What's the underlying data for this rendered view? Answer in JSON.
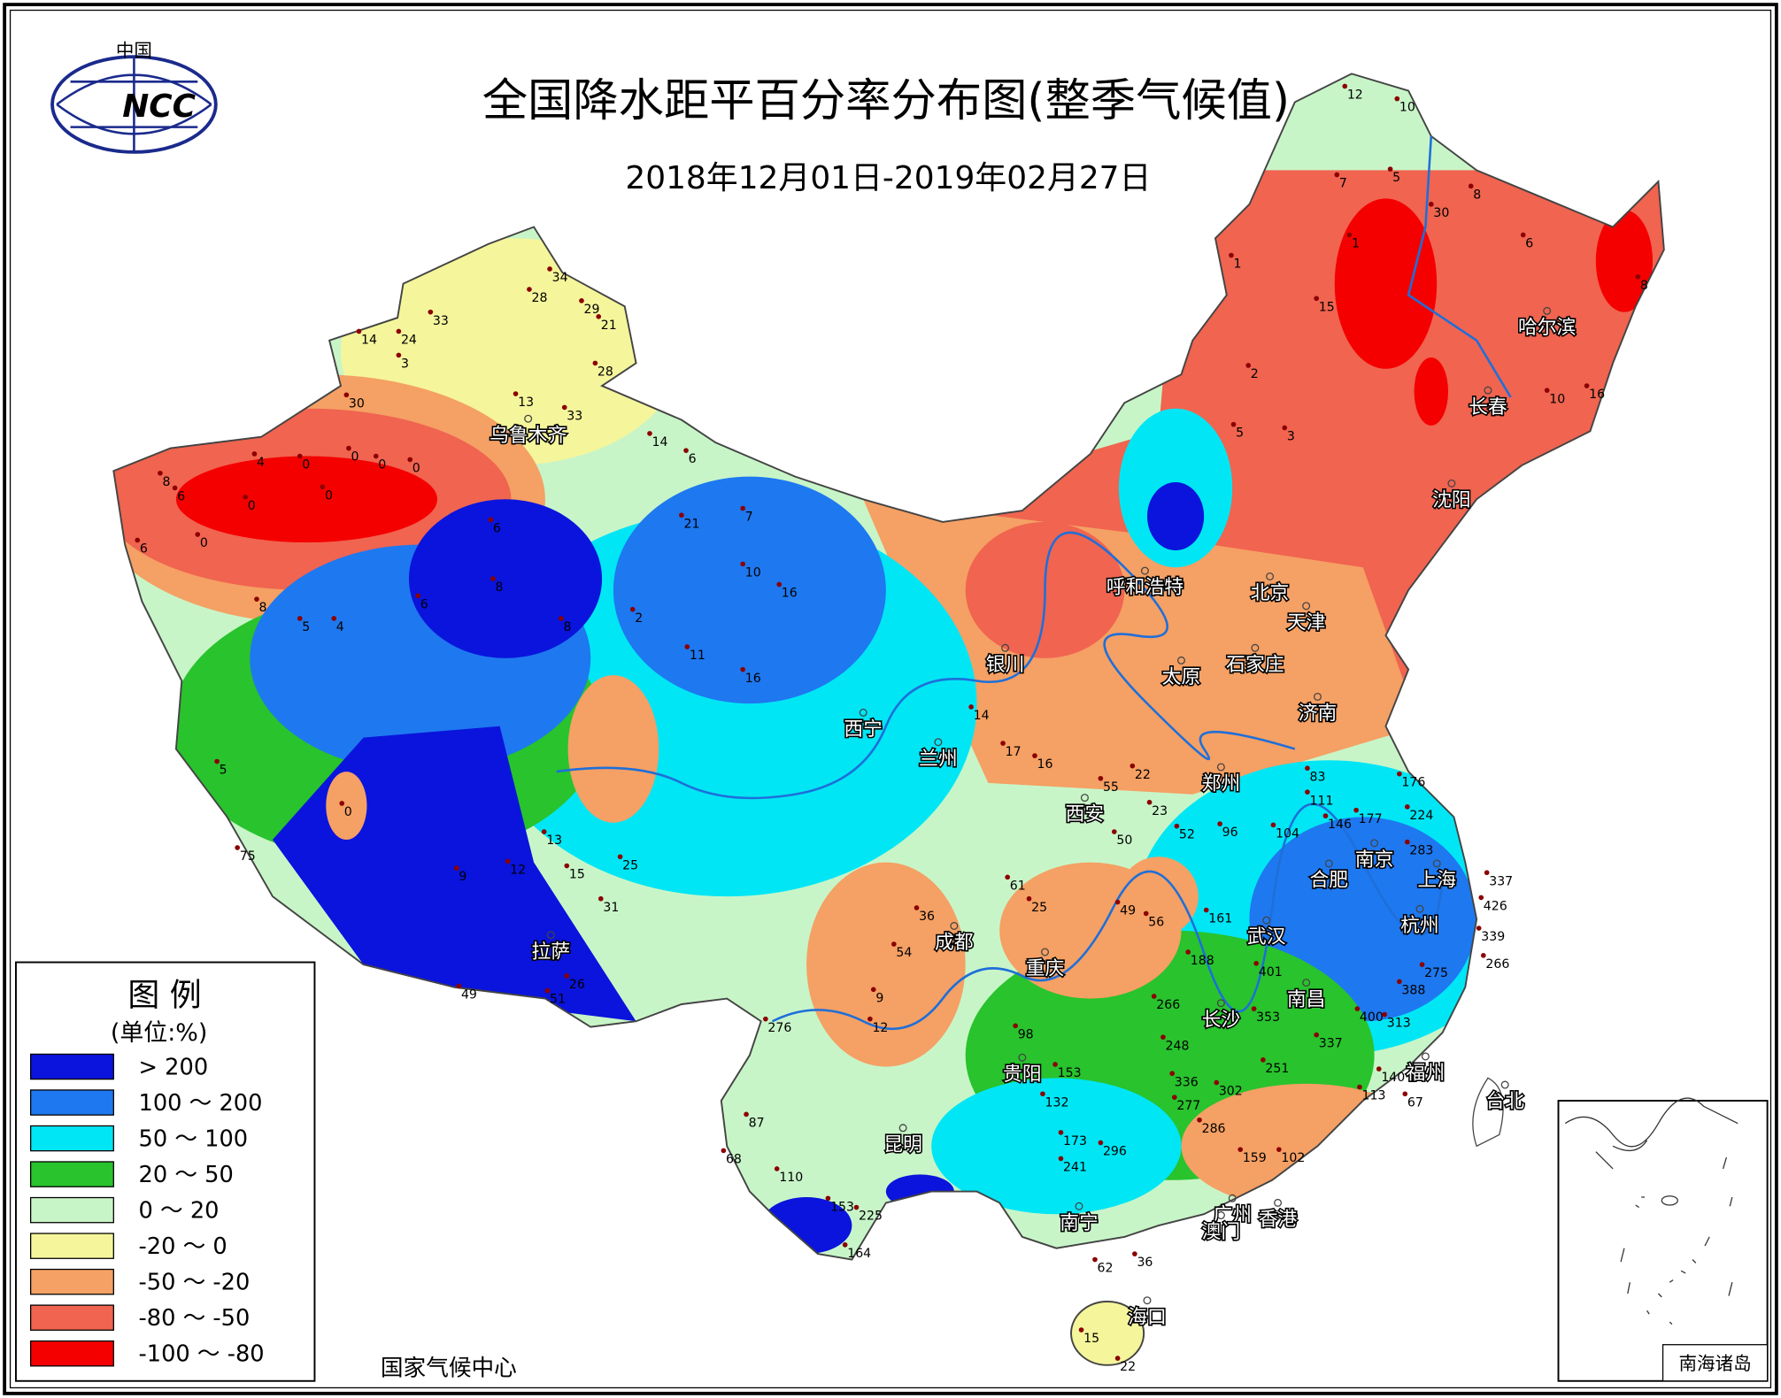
{
  "header": {
    "title": "全国降水距平百分率分布图(整季气候值)",
    "date": "2018年12月01日-2019年02月27日"
  },
  "logo": {
    "top": "中国",
    "mark": "NCC"
  },
  "legend": {
    "title": "图 例",
    "unit": "(单位:%)",
    "items": [
      {
        "label": "> 200",
        "color": "#0a14dc"
      },
      {
        "label": "100 ～ 200",
        "color": "#1e78f0"
      },
      {
        "label": "50 ～ 100",
        "color": "#00e6f5"
      },
      {
        "label": "20 ～ 50",
        "color": "#28c32d"
      },
      {
        "label": "0 ～ 20",
        "color": "#c8f5c8"
      },
      {
        "label": "-20 ～ 0",
        "color": "#f5f59b"
      },
      {
        "label": "-50 ～ -20",
        "color": "#f5a064"
      },
      {
        "label": "-80 ～ -50",
        "color": "#f06450"
      },
      {
        "label": "-100 ～ -80",
        "color": "#f50000"
      }
    ]
  },
  "cities": [
    "乌鲁木齐",
    "哈尔滨",
    "长春",
    "沈阳",
    "呼和浩特",
    "北京",
    "天津",
    "银川",
    "太原",
    "石家庄",
    "济南",
    "西宁",
    "兰州",
    "郑州",
    "西安",
    "南京",
    "合肥",
    "上海",
    "杭州",
    "成都",
    "武汉",
    "重庆",
    "南昌",
    "长沙",
    "拉萨",
    "贵阳",
    "福州",
    "台北",
    "昆明",
    "南宁",
    "广州",
    "香港",
    "澳门",
    "海口"
  ],
  "stations": [
    33,
    34,
    28,
    29,
    21,
    14,
    24,
    3,
    30,
    13,
    33,
    28,
    14,
    6,
    4,
    0,
    0,
    0,
    0,
    8,
    6,
    0,
    0,
    0,
    6,
    8,
    5,
    4,
    6,
    8,
    6,
    8,
    2,
    21,
    7,
    10,
    16,
    11,
    16,
    5,
    0,
    75,
    13,
    15,
    12,
    9,
    31,
    25,
    51,
    49,
    26,
    12,
    10,
    7,
    5,
    30,
    1,
    1,
    15,
    8,
    6,
    8,
    16,
    10,
    2,
    5,
    3,
    176,
    224,
    146,
    177,
    283,
    337,
    426,
    339,
    266,
    275,
    388,
    400,
    313,
    337,
    251,
    302,
    277,
    286,
    159,
    102,
    113,
    140,
    67,
    153,
    132,
    173,
    296,
    241,
    110,
    153,
    225,
    164,
    62,
    22,
    15,
    36,
    68,
    87,
    276,
    9,
    12,
    54,
    36,
    98,
    61,
    25,
    49,
    56,
    188,
    161,
    266,
    248,
    336,
    401,
    353,
    23,
    50,
    52,
    96,
    104,
    83,
    111,
    17,
    14,
    16,
    55,
    22
  ],
  "footer": "国家气候中心",
  "inset": "南海诸岛"
}
